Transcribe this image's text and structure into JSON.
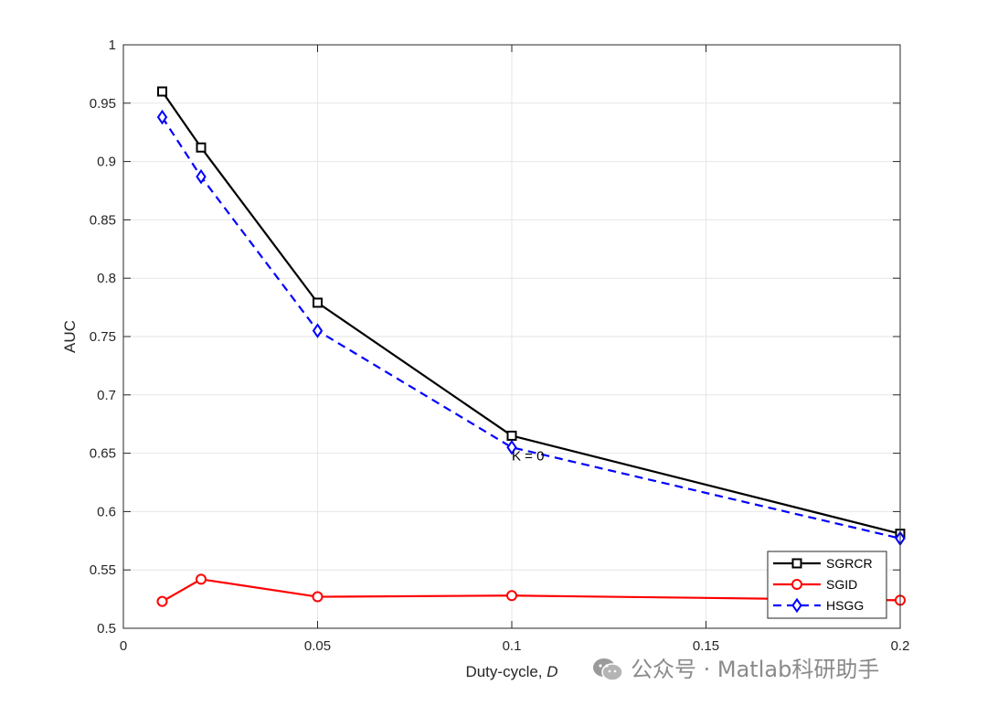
{
  "chart_data": {
    "type": "line",
    "title": "",
    "xlabel": "Duty-cycle, ",
    "xlabel_var": "D",
    "ylabel": "AUC",
    "xlim": [
      0,
      0.2
    ],
    "ylim": [
      0.5,
      1
    ],
    "xticks": [
      0,
      0.05,
      0.1,
      0.15,
      0.2
    ],
    "xtick_labels": [
      "0",
      "0.05",
      "0.1",
      "0.15",
      "0.2"
    ],
    "yticks": [
      0.5,
      0.55,
      0.6,
      0.65,
      0.7,
      0.75,
      0.8,
      0.85,
      0.9,
      0.95,
      1
    ],
    "ytick_labels": [
      "0.5",
      "0.55",
      "0.6",
      "0.65",
      "0.7",
      "0.75",
      "0.8",
      "0.85",
      "0.9",
      "0.95",
      "1"
    ],
    "grid": true,
    "legend_position": "bottom-right",
    "series": [
      {
        "name": "SGRCR",
        "color": "#000000",
        "dash": "solid",
        "marker": "square",
        "x": [
          0.01,
          0.02,
          0.05,
          0.1,
          0.2
        ],
        "y": [
          0.96,
          0.912,
          0.779,
          0.665,
          0.581
        ]
      },
      {
        "name": "SGID",
        "color": "#ff0000",
        "dash": "solid",
        "marker": "circle",
        "x": [
          0.01,
          0.02,
          0.05,
          0.1,
          0.2
        ],
        "y": [
          0.523,
          0.542,
          0.527,
          0.528,
          0.524
        ]
      },
      {
        "name": "HSGG",
        "color": "#0000ff",
        "dash": "dashed",
        "marker": "diamond",
        "x": [
          0.01,
          0.02,
          0.05,
          0.1,
          0.2
        ],
        "y": [
          0.938,
          0.887,
          0.755,
          0.655,
          0.577
        ]
      }
    ],
    "annotations": [
      {
        "text": "K = 0",
        "x": 0.1,
        "y": 0.65
      }
    ]
  },
  "watermark": {
    "text": "公众号 · Matlab科研助手",
    "icon": "wechat-icon"
  }
}
